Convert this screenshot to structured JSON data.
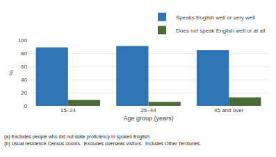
{
  "chart_data": {
    "type": "bar",
    "categories": [
      "15–24",
      "25–44",
      "45 and over"
    ],
    "series": [
      {
        "name": "Speaks English well or very well",
        "color": "#2E75B6",
        "values": [
          89,
          91,
          85
        ]
      },
      {
        "name": "Does not speak English well or at all",
        "color": "#4B6B35",
        "values": [
          9,
          6,
          13
        ]
      }
    ],
    "ylabel": "%",
    "xlabel": "Age group (years)",
    "ylim": [
      0,
      100
    ],
    "yticks": [
      0,
      20,
      40,
      60,
      80,
      100
    ],
    "grid": true,
    "legend": "upper right",
    "annotations": [
      "(a) Excludes people who did not state proficiency in spoken English.",
      "(b) Usual residence Census counts.  Excludes overseas visitors.  Includes Other Territories."
    ]
  }
}
